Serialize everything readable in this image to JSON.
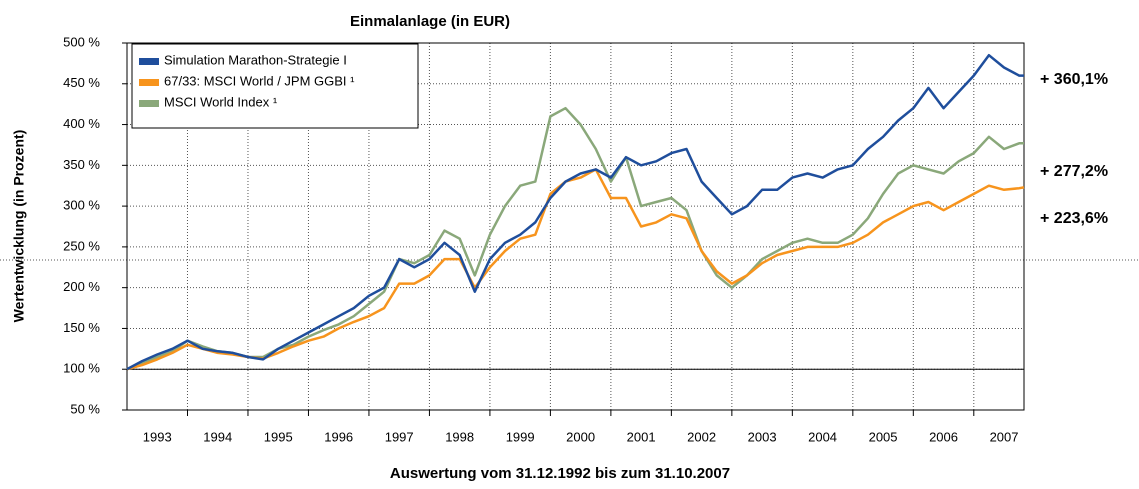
{
  "chart_data": {
    "type": "line",
    "title": "Einmalanlage (in EUR)",
    "ylabel": "Wertentwicklung (in Prozent)",
    "xlabel": "Auswertung vom 31.12.1992 bis zum 31.10.2007",
    "x": [
      1993,
      1993.25,
      1993.5,
      1993.75,
      1994,
      1994.25,
      1994.5,
      1994.75,
      1995,
      1995.25,
      1995.5,
      1995.75,
      1996,
      1996.25,
      1996.5,
      1996.75,
      1997,
      1997.25,
      1997.5,
      1997.75,
      1998,
      1998.25,
      1998.5,
      1998.75,
      1999,
      1999.25,
      1999.5,
      1999.75,
      2000,
      2000.25,
      2000.5,
      2000.75,
      2001,
      2001.25,
      2001.5,
      2001.75,
      2002,
      2002.25,
      2002.5,
      2002.75,
      2003,
      2003.25,
      2003.5,
      2003.75,
      2004,
      2004.25,
      2004.5,
      2004.75,
      2005,
      2005.25,
      2005.5,
      2005.75,
      2006,
      2006.25,
      2006.5,
      2006.75,
      2007,
      2007.25,
      2007.5,
      2007.75,
      2007.83
    ],
    "series": [
      {
        "name": "Simulation Marathon-Strategie I",
        "color": "#1f4e9c",
        "values": [
          100,
          110,
          118,
          125,
          135,
          125,
          122,
          120,
          115,
          112,
          125,
          135,
          145,
          155,
          165,
          175,
          190,
          200,
          235,
          225,
          235,
          255,
          240,
          195,
          235,
          255,
          265,
          280,
          310,
          330,
          340,
          345,
          335,
          360,
          350,
          355,
          365,
          370,
          330,
          310,
          290,
          300,
          320,
          320,
          335,
          340,
          335,
          345,
          350,
          370,
          385,
          405,
          420,
          445,
          420,
          440,
          460,
          485,
          470,
          460,
          460
        ]
      },
      {
        "name": "67/33: MSCI World / JPM GGBI ¹",
        "color": "#f7941d",
        "values": [
          100,
          105,
          112,
          120,
          130,
          125,
          120,
          118,
          115,
          113,
          120,
          128,
          135,
          140,
          150,
          158,
          165,
          175,
          205,
          205,
          215,
          235,
          235,
          200,
          225,
          245,
          260,
          265,
          315,
          330,
          335,
          345,
          310,
          310,
          275,
          280,
          290,
          285,
          245,
          220,
          205,
          215,
          230,
          240,
          245,
          250,
          250,
          250,
          255,
          265,
          280,
          290,
          300,
          305,
          295,
          305,
          315,
          325,
          320,
          322,
          323
        ]
      },
      {
        "name": "MSCI World Index ¹",
        "color": "#8aa87a",
        "values": [
          100,
          108,
          115,
          122,
          135,
          128,
          122,
          120,
          115,
          115,
          125,
          130,
          140,
          148,
          155,
          165,
          180,
          195,
          235,
          230,
          240,
          270,
          260,
          215,
          265,
          300,
          325,
          330,
          410,
          420,
          400,
          370,
          330,
          360,
          300,
          305,
          310,
          295,
          245,
          215,
          200,
          215,
          235,
          245,
          255,
          260,
          255,
          255,
          265,
          285,
          315,
          340,
          350,
          345,
          340,
          355,
          365,
          385,
          370,
          377,
          377
        ]
      }
    ],
    "ylim": [
      50,
      500
    ],
    "yticks": [
      {
        "value": 50,
        "label": "50 %"
      },
      {
        "value": 100,
        "label": "100 %"
      },
      {
        "value": 150,
        "label": "150 %"
      },
      {
        "value": 200,
        "label": "200 %"
      },
      {
        "value": 250,
        "label": "250 %"
      },
      {
        "value": 300,
        "label": "300 %"
      },
      {
        "value": 350,
        "label": "350 %"
      },
      {
        "value": 400,
        "label": "400 %"
      },
      {
        "value": 450,
        "label": "450 %"
      },
      {
        "value": 500,
        "label": "500 %"
      }
    ],
    "xlim": [
      1993,
      2007.83
    ],
    "xticks": [
      {
        "value": 1993.5,
        "label": "1993"
      },
      {
        "value": 1994.5,
        "label": "1994"
      },
      {
        "value": 1995.5,
        "label": "1995"
      },
      {
        "value": 1996.5,
        "label": "1996"
      },
      {
        "value": 1997.5,
        "label": "1997"
      },
      {
        "value": 1998.5,
        "label": "1998"
      },
      {
        "value": 1999.5,
        "label": "1999"
      },
      {
        "value": 2000.5,
        "label": "2000"
      },
      {
        "value": 2001.5,
        "label": "2001"
      },
      {
        "value": 2002.5,
        "label": "2002"
      },
      {
        "value": 2003.5,
        "label": "2003"
      },
      {
        "value": 2004.5,
        "label": "2004"
      },
      {
        "value": 2005.5,
        "label": "2005"
      },
      {
        "value": 2006.5,
        "label": "2006"
      },
      {
        "value": 2007.5,
        "label": "2007"
      }
    ],
    "xgrid": [
      1994,
      1995,
      1996,
      1997,
      1998,
      1999,
      2000,
      2001,
      2002,
      2003,
      2004,
      2005,
      2006,
      2007
    ],
    "hline": 100,
    "grid": true,
    "legend": "upper left",
    "annotations": [
      {
        "text": "+ 360,1%",
        "color": "#1f4e9c"
      },
      {
        "text": "+ 277,2%",
        "color": "#8aa87a"
      },
      {
        "text": "+ 223,6%",
        "color": "#f7941d"
      }
    ]
  }
}
